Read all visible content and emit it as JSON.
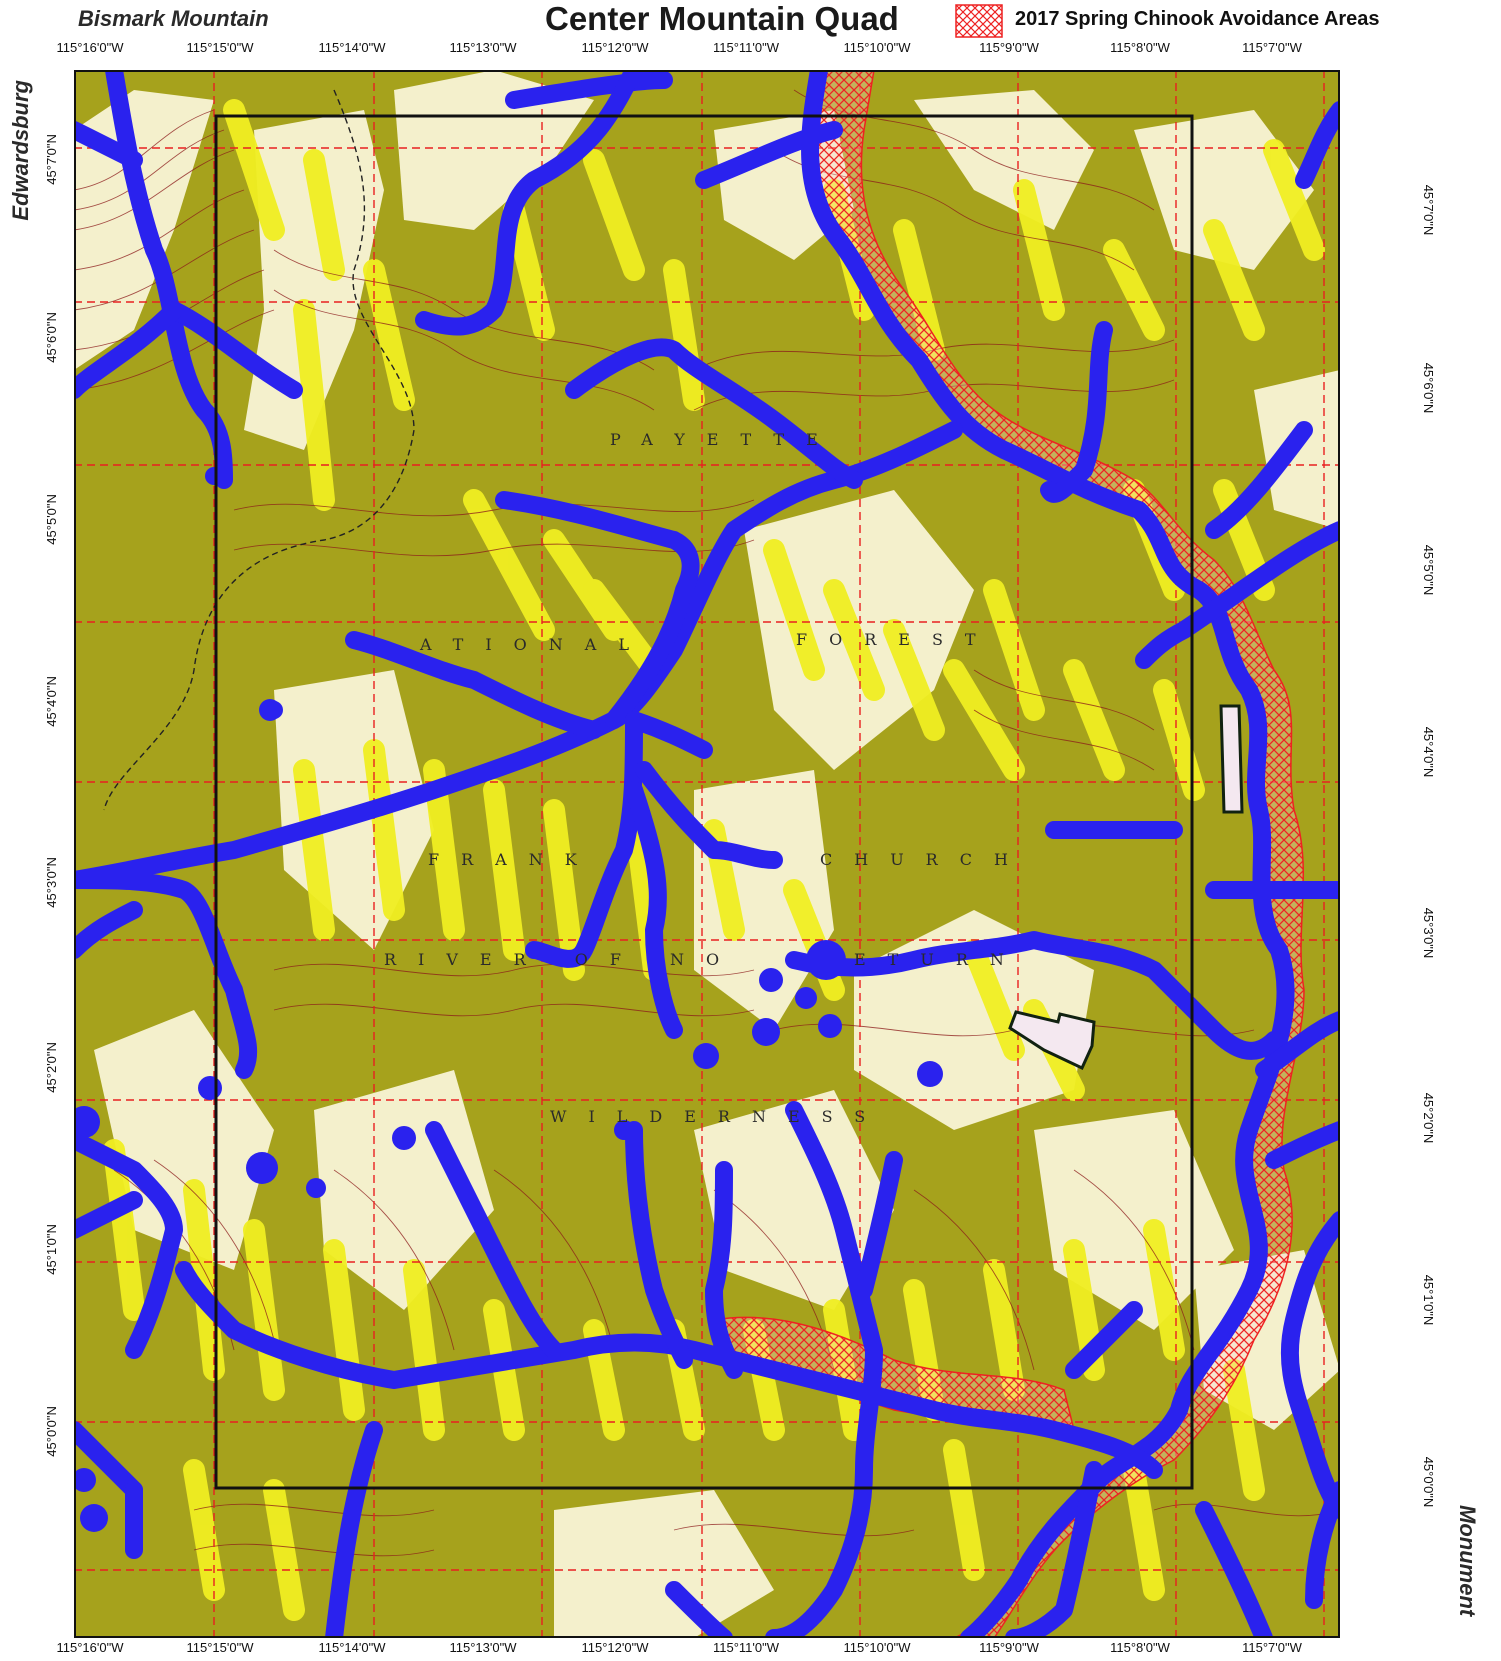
{
  "title": "Center Mountain Quad",
  "legend": {
    "label": "2017 Spring Chinook Avoidance Areas",
    "color": "#ee2222"
  },
  "neighbors": {
    "top_left": "Bismark Mountain",
    "left": "Edwardsburg",
    "right": "Monument"
  },
  "longitude_ticks": [
    "115°16'0\"W",
    "115°15'0\"W",
    "115°14'0\"W",
    "115°13'0\"W",
    "115°12'0\"W",
    "115°11'0\"W",
    "115°10'0\"W",
    "115°9'0\"W",
    "115°8'0\"W",
    "115°7'0\"W"
  ],
  "latitude_ticks": [
    "45°7'0\"N",
    "45°6'0\"N",
    "45°5'0\"N",
    "45°4'0\"N",
    "45°3'0\"N",
    "45°2'0\"N",
    "45°1'0\"N",
    "45°0'0\"N"
  ],
  "place_labels": {
    "payette": "PAYETTE",
    "national": "ATIONAL",
    "forest": "FOREST",
    "frank": "FRANK",
    "church": "CHURCH",
    "river_of_no": "RIVER OF NO",
    "return": "ETURN",
    "wilderness": "WILDERNESS"
  },
  "colors": {
    "stream": "#2a22ee",
    "olive": "#a6a21c",
    "yellow": "#f0ee22",
    "cream": "#f4f0cc",
    "contour": "#8b1a1a",
    "grid": "#e82020"
  }
}
